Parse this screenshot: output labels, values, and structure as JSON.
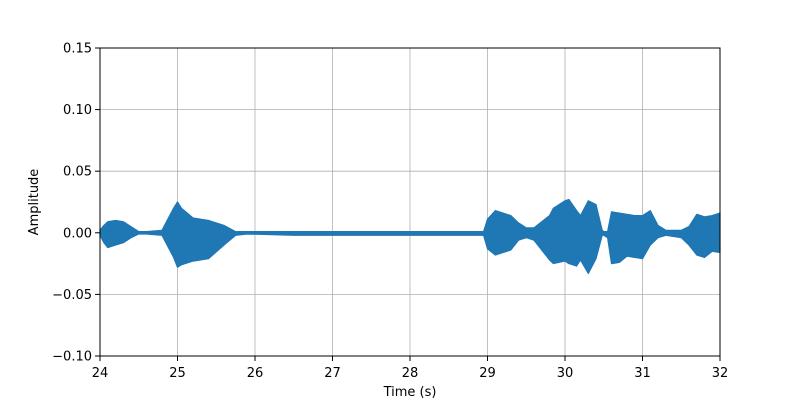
{
  "chart_data": {
    "type": "line",
    "title": "",
    "xlabel": "Time (s)",
    "ylabel": "Amplitude",
    "xlim": [
      24,
      32
    ],
    "ylim": [
      -0.1,
      0.15
    ],
    "grid": true,
    "x_ticks": [
      24,
      25,
      26,
      27,
      28,
      29,
      30,
      31,
      32
    ],
    "x_tick_labels": [
      "24",
      "25",
      "26",
      "27",
      "28",
      "29",
      "30",
      "31",
      "32"
    ],
    "y_ticks": [
      -0.1,
      -0.05,
      0.0,
      0.05,
      0.1,
      0.15
    ],
    "y_tick_labels": [
      "−0.10",
      "−0.05",
      "0.00",
      "0.05",
      "0.10",
      "0.15"
    ],
    "series_color": "#1f77b4",
    "series": [
      {
        "x": [
          24.0,
          24.05,
          24.1,
          24.2,
          24.3,
          24.4,
          24.5,
          24.6,
          24.8,
          24.95,
          25.0,
          25.05,
          25.2,
          25.4,
          25.6,
          25.75,
          25.9,
          26.5,
          27.0,
          27.5,
          28.0,
          28.5,
          28.95,
          29.0,
          29.1,
          29.3,
          29.4,
          29.5,
          29.6,
          29.8,
          29.85,
          30.0,
          30.05,
          30.15,
          30.2,
          30.3,
          30.4,
          30.48,
          30.5,
          30.55,
          30.6,
          30.7,
          30.8,
          30.9,
          31.0,
          31.1,
          31.2,
          31.3,
          31.5,
          31.6,
          31.7,
          31.8,
          31.9,
          32.0
        ],
        "upper": [
          0.002,
          0.006,
          0.009,
          0.01,
          0.009,
          0.005,
          0.001,
          0.001,
          0.002,
          0.02,
          0.025,
          0.02,
          0.012,
          0.01,
          0.006,
          0.001,
          0.001,
          0.001,
          0.001,
          0.001,
          0.001,
          0.001,
          0.001,
          0.011,
          0.018,
          0.014,
          0.008,
          0.004,
          0.004,
          0.014,
          0.02,
          0.026,
          0.027,
          0.018,
          0.014,
          0.026,
          0.023,
          0.002,
          0.001,
          0.001,
          0.017,
          0.016,
          0.015,
          0.014,
          0.014,
          0.018,
          0.006,
          0.002,
          0.002,
          0.005,
          0.015,
          0.013,
          0.014,
          0.016
        ],
        "lower": [
          -0.002,
          -0.008,
          -0.012,
          -0.01,
          -0.008,
          -0.004,
          -0.001,
          -0.001,
          -0.002,
          -0.02,
          -0.028,
          -0.026,
          -0.023,
          -0.021,
          -0.01,
          -0.002,
          -0.001,
          -0.002,
          -0.002,
          -0.002,
          -0.002,
          -0.002,
          -0.002,
          -0.013,
          -0.018,
          -0.014,
          -0.006,
          -0.004,
          -0.006,
          -0.022,
          -0.025,
          -0.023,
          -0.025,
          -0.027,
          -0.022,
          -0.033,
          -0.021,
          -0.002,
          -0.002,
          -0.004,
          -0.025,
          -0.024,
          -0.019,
          -0.02,
          -0.021,
          -0.01,
          -0.004,
          -0.002,
          -0.004,
          -0.01,
          -0.018,
          -0.02,
          -0.015,
          -0.016
        ]
      }
    ]
  }
}
